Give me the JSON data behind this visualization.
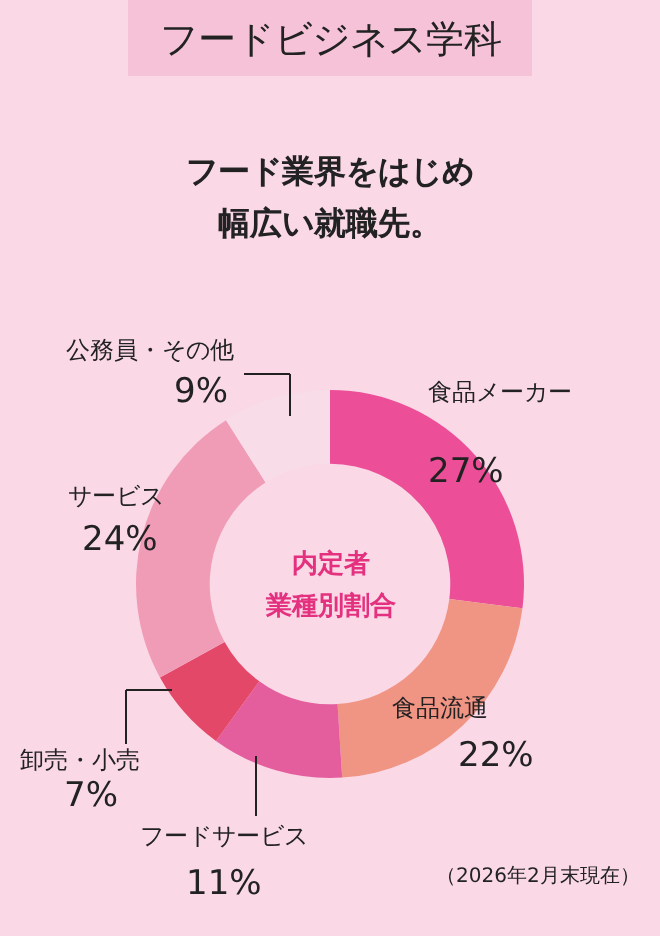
{
  "chart_data": {
    "type": "donut",
    "title": "フードビジネス学科",
    "subtitle": "フード業界をはじめ幅広い就職先。",
    "categories": [
      "食品メーカー",
      "食品流通",
      "フードサービス",
      "卸売・小売",
      "サービス",
      "公務員・その他"
    ],
    "values": [
      27,
      22,
      11,
      7,
      24,
      9
    ],
    "value_labels": [
      "27%",
      "22%",
      "11%",
      "7%",
      "24%",
      "9%"
    ],
    "colors": [
      "#ec4e98",
      "#f09484",
      "#e45e9e",
      "#e44868",
      "#f09cb6",
      "#f8dce8"
    ],
    "annotations": [
      "内定者",
      "業種別割合",
      "（2026年2月末現在）"
    ],
    "legend": false
  }
}
